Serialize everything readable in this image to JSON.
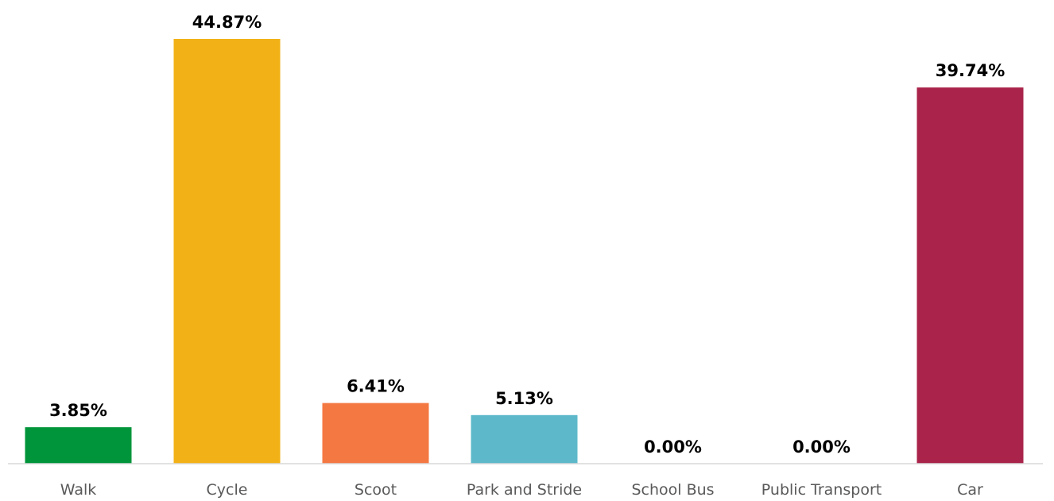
{
  "chart_data": {
    "type": "bar",
    "categories": [
      "Walk",
      "Cycle",
      "Scoot",
      "Park and Stride",
      "School Bus",
      "Public Transport",
      "Car"
    ],
    "values": [
      3.85,
      44.87,
      6.41,
      5.13,
      0.0,
      0.0,
      39.74
    ],
    "value_labels": [
      "3.85%",
      "44.87%",
      "6.41%",
      "5.13%",
      "0.00%",
      "0.00%",
      "39.74%"
    ],
    "colors": [
      "#00953A",
      "#F2B217",
      "#F47842",
      "#5DB8CA",
      "#00A3AD",
      "#1A9DD9",
      "#A9234A"
    ],
    "title": "",
    "xlabel": "",
    "ylabel": "",
    "ylim": [
      0,
      45
    ],
    "grid": false,
    "legend": "none"
  }
}
